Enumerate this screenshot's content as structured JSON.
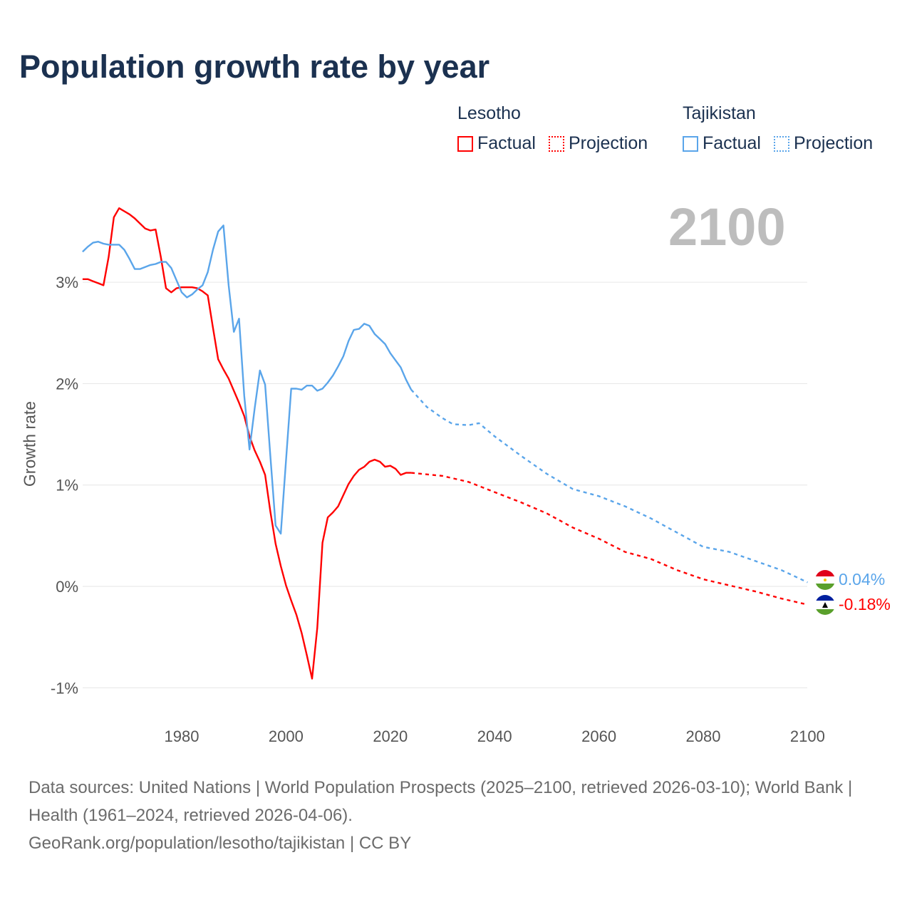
{
  "title": "Population growth rate by year",
  "year_display": "2100",
  "legend": [
    {
      "country": "Lesotho",
      "factual_label": "Factual",
      "projection_label": "Projection",
      "color": "#ff0000"
    },
    {
      "country": "Tajikistan",
      "factual_label": "Factual",
      "projection_label": "Projection",
      "color": "#5aa5ea"
    }
  ],
  "end_labels": {
    "tajikistan": "0.04%",
    "lesotho": "-0.18%"
  },
  "footer": {
    "sources": "Data sources: United Nations | World Population Prospects (2025–2100, retrieved 2026-03-10); World Bank | Health (1961–2024, retrieved 2026-04-06).",
    "link": "GeoRank.org/population/lesotho/tajikistan | CC BY"
  },
  "chart_data": {
    "type": "line",
    "title": "Population growth rate by year",
    "xlabel": "",
    "ylabel": "Growth rate",
    "xlim": [
      1961,
      2100
    ],
    "ylim": [
      -1.2,
      3.9
    ],
    "x_ticks": [
      1980,
      2000,
      2020,
      2040,
      2060,
      2080,
      2100
    ],
    "x_tick_labels": [
      "1980",
      "2000",
      "2020",
      "2040",
      "2060",
      "2080",
      "2100"
    ],
    "y_ticks": [
      3,
      2,
      1,
      0,
      -1
    ],
    "y_tick_labels": [
      "3%",
      "2%",
      "1%",
      "0%",
      "-1%"
    ],
    "grid": true,
    "legend_position": "top-right",
    "series": [
      {
        "name": "Lesotho Factual",
        "color": "#ff0000",
        "style": "solid",
        "x": [
          1961,
          1962,
          1963,
          1964,
          1965,
          1966,
          1967,
          1968,
          1969,
          1970,
          1971,
          1972,
          1973,
          1974,
          1975,
          1976,
          1977,
          1978,
          1979,
          1980,
          1981,
          1982,
          1983,
          1984,
          1985,
          1986,
          1987,
          1988,
          1989,
          1990,
          1991,
          1992,
          1993,
          1994,
          1995,
          1996,
          1997,
          1998,
          1999,
          2000,
          2001,
          2002,
          2003,
          2004,
          2005,
          2006,
          2007,
          2008,
          2009,
          2010,
          2011,
          2012,
          2013,
          2014,
          2015,
          2016,
          2017,
          2018,
          2019,
          2020,
          2021,
          2022,
          2023,
          2024
        ],
        "values": [
          3.03,
          3.03,
          3.01,
          2.99,
          2.97,
          3.25,
          3.64,
          3.73,
          3.7,
          3.67,
          3.63,
          3.58,
          3.53,
          3.51,
          3.52,
          3.25,
          2.94,
          2.9,
          2.94,
          2.95,
          2.95,
          2.95,
          2.94,
          2.91,
          2.87,
          2.55,
          2.24,
          2.14,
          2.05,
          1.93,
          1.81,
          1.68,
          1.48,
          1.34,
          1.23,
          1.1,
          0.74,
          0.42,
          0.2,
          0.01,
          -0.14,
          -0.28,
          -0.46,
          -0.68,
          -0.91,
          -0.41,
          0.43,
          0.68,
          0.73,
          0.79,
          0.9,
          1.01,
          1.09,
          1.15,
          1.18,
          1.23,
          1.25,
          1.23,
          1.18,
          1.19,
          1.16,
          1.1,
          1.12,
          1.12
        ]
      },
      {
        "name": "Lesotho Projection",
        "color": "#ff0000",
        "style": "dashed",
        "x": [
          2024,
          2030,
          2035,
          2040,
          2045,
          2050,
          2055,
          2060,
          2065,
          2070,
          2075,
          2080,
          2085,
          2090,
          2095,
          2100
        ],
        "values": [
          1.12,
          1.09,
          1.03,
          0.93,
          0.83,
          0.72,
          0.58,
          0.47,
          0.34,
          0.27,
          0.16,
          0.07,
          0.01,
          -0.05,
          -0.12,
          -0.18
        ]
      },
      {
        "name": "Tajikistan Factual",
        "color": "#5aa5ea",
        "style": "solid",
        "x": [
          1961,
          1962,
          1963,
          1964,
          1965,
          1966,
          1967,
          1968,
          1969,
          1970,
          1971,
          1972,
          1973,
          1974,
          1975,
          1976,
          1977,
          1978,
          1979,
          1980,
          1981,
          1982,
          1983,
          1984,
          1985,
          1986,
          1987,
          1988,
          1989,
          1990,
          1991,
          1992,
          1993,
          1994,
          1995,
          1996,
          1997,
          1998,
          1999,
          2000,
          2001,
          2002,
          2003,
          2004,
          2005,
          2006,
          2007,
          2008,
          2009,
          2010,
          2011,
          2012,
          2013,
          2014,
          2015,
          2016,
          2017,
          2018,
          2019,
          2020,
          2021,
          2022,
          2023,
          2024
        ],
        "values": [
          3.3,
          3.35,
          3.39,
          3.4,
          3.38,
          3.37,
          3.37,
          3.37,
          3.32,
          3.23,
          3.13,
          3.13,
          3.15,
          3.17,
          3.18,
          3.2,
          3.2,
          3.14,
          3.02,
          2.9,
          2.85,
          2.88,
          2.93,
          2.97,
          3.1,
          3.32,
          3.5,
          3.56,
          2.97,
          2.51,
          2.64,
          1.88,
          1.35,
          1.76,
          2.13,
          1.99,
          1.29,
          0.6,
          0.52,
          1.24,
          1.95,
          1.95,
          1.94,
          1.98,
          1.98,
          1.93,
          1.95,
          2.01,
          2.08,
          2.17,
          2.27,
          2.42,
          2.53,
          2.54,
          2.59,
          2.57,
          2.49,
          2.44,
          2.39,
          2.3,
          2.23,
          2.16,
          2.04,
          1.94
        ]
      },
      {
        "name": "Tajikistan Projection",
        "color": "#5aa5ea",
        "style": "dashed",
        "x": [
          2024,
          2027,
          2030,
          2032,
          2035,
          2037,
          2040,
          2045,
          2050,
          2055,
          2060,
          2065,
          2070,
          2075,
          2080,
          2085,
          2090,
          2095,
          2100
        ],
        "values": [
          1.94,
          1.77,
          1.66,
          1.6,
          1.59,
          1.61,
          1.48,
          1.29,
          1.11,
          0.96,
          0.89,
          0.79,
          0.67,
          0.53,
          0.39,
          0.34,
          0.25,
          0.16,
          0.04
        ]
      }
    ]
  }
}
